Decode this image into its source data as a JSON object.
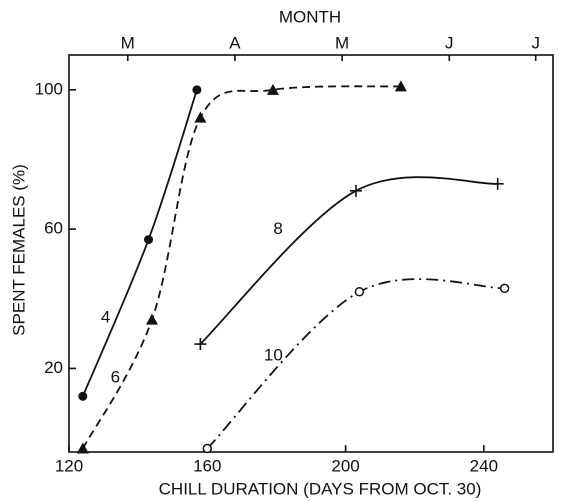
{
  "chart_data": {
    "type": "line",
    "x2label": "MONTH",
    "xlabel": "CHILL DURATION (DAYS FROM OCT. 30)",
    "ylabel": "SPENT FEMALES (%)",
    "xlim": [
      120,
      260
    ],
    "ylim": [
      -4,
      110
    ],
    "xticks": [
      120,
      160,
      200,
      240
    ],
    "yticks": [
      20,
      60,
      100
    ],
    "x2ticks": [
      {
        "value": 137,
        "label": "M"
      },
      {
        "value": 168,
        "label": "A"
      },
      {
        "value": 199,
        "label": "M"
      },
      {
        "value": 230,
        "label": "J"
      },
      {
        "value": 255,
        "label": "J"
      }
    ],
    "series": [
      {
        "name": "4",
        "color": "#111",
        "dash": "none",
        "marker": "circle",
        "x": [
          124,
          143,
          157
        ],
        "values": [
          12,
          57,
          100
        ]
      },
      {
        "name": "6",
        "color": "#111",
        "dash": "8 5",
        "marker": "triangle",
        "x": [
          124,
          144,
          158,
          179,
          216
        ],
        "values": [
          -3,
          34,
          92,
          100,
          101
        ]
      },
      {
        "name": "8",
        "color": "#111",
        "dash": "none",
        "marker": "plus",
        "x": [
          158,
          203,
          244
        ],
        "values": [
          27,
          71,
          73
        ]
      },
      {
        "name": "10",
        "color": "#111",
        "dash": "12 5 2 5",
        "marker": "open-circle",
        "x": [
          160,
          204,
          246
        ],
        "values": [
          -3,
          42,
          43
        ]
      }
    ]
  }
}
